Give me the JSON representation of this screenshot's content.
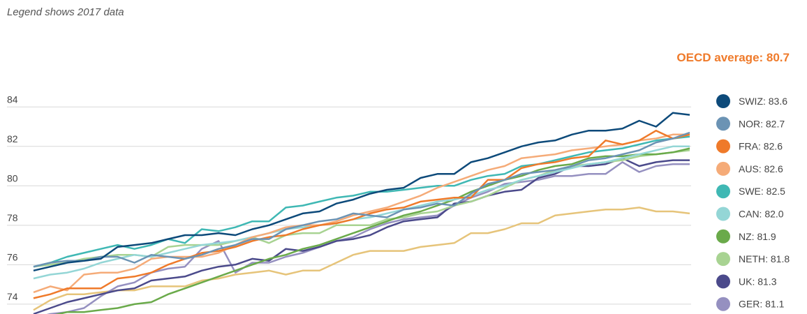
{
  "chart_data": {
    "type": "line",
    "subtitle": "Legend shows 2017 data",
    "annotation": "OECD average: 80.7",
    "categories": [
      null,
      null,
      null,
      null,
      null,
      null,
      null,
      null,
      null,
      null,
      null,
      null,
      null,
      null,
      null,
      null,
      null,
      null,
      null,
      null,
      null,
      null,
      null,
      null,
      null,
      null,
      null,
      null,
      null,
      null,
      null,
      null,
      null,
      null,
      null,
      null,
      null,
      null,
      null,
      null
    ],
    "ylim": [
      73.5,
      85
    ],
    "yticks": [
      74,
      76,
      78,
      80,
      82,
      84
    ],
    "grid": true,
    "legend": "right",
    "series": [
      {
        "name": "SWIZ: 83.6",
        "color": "#0d4a7a",
        "values": [
          75.7,
          75.9,
          76.1,
          76.2,
          76.3,
          76.9,
          77.0,
          77.1,
          77.3,
          77.5,
          77.5,
          77.6,
          77.5,
          77.8,
          78.0,
          78.3,
          78.6,
          78.7,
          79.1,
          79.3,
          79.6,
          79.8,
          79.9,
          80.4,
          80.6,
          80.6,
          81.2,
          81.4,
          81.7,
          82.0,
          82.2,
          82.3,
          82.6,
          82.8,
          82.8,
          82.9,
          83.3,
          83.0,
          83.7,
          83.6
        ]
      },
      {
        "name": "NOR: 82.7",
        "color": "#6b93b4",
        "values": [
          75.9,
          76.1,
          76.2,
          76.2,
          76.4,
          76.4,
          76.1,
          76.5,
          76.4,
          76.3,
          76.5,
          76.8,
          77.0,
          77.3,
          77.3,
          77.8,
          78.0,
          78.2,
          78.3,
          78.6,
          78.5,
          78.4,
          78.8,
          78.9,
          79.1,
          79.0,
          79.6,
          80.1,
          80.3,
          80.6,
          80.7,
          80.8,
          81.0,
          81.3,
          81.4,
          81.6,
          81.8,
          82.2,
          82.4,
          82.7
        ]
      },
      {
        "name": "FRA: 82.6",
        "color": "#ef7a2a",
        "values": [
          74.3,
          74.5,
          74.8,
          74.8,
          74.8,
          75.3,
          75.4,
          75.6,
          76.0,
          76.3,
          76.6,
          76.7,
          76.9,
          77.2,
          77.4,
          77.5,
          77.8,
          78.0,
          78.1,
          78.3,
          78.6,
          78.8,
          78.9,
          79.2,
          79.3,
          79.4,
          79.4,
          80.3,
          80.3,
          80.9,
          81.1,
          81.2,
          81.4,
          81.5,
          82.3,
          82.1,
          82.3,
          82.8,
          82.4,
          82.6
        ]
      },
      {
        "name": "AUS: 82.6",
        "color": "#f5ab78",
        "values": [
          74.6,
          74.9,
          74.7,
          75.5,
          75.6,
          75.6,
          75.8,
          76.3,
          76.4,
          76.4,
          76.4,
          76.6,
          77.0,
          77.4,
          77.6,
          77.9,
          78.0,
          78.0,
          78.2,
          78.5,
          78.7,
          78.9,
          79.2,
          79.5,
          79.9,
          80.2,
          80.5,
          80.8,
          81.0,
          81.4,
          81.5,
          81.6,
          81.8,
          81.9,
          82.0,
          82.1,
          82.3,
          82.4,
          82.6,
          82.6
        ]
      },
      {
        "name": "SWE: 82.5",
        "color": "#3fb8b4",
        "values": [
          75.9,
          76.1,
          76.4,
          76.6,
          76.8,
          77.0,
          76.8,
          77.0,
          77.3,
          77.1,
          77.8,
          77.7,
          77.9,
          78.2,
          78.2,
          78.9,
          79.0,
          79.2,
          79.4,
          79.5,
          79.7,
          79.7,
          79.8,
          79.9,
          80.0,
          80.0,
          80.3,
          80.5,
          80.6,
          81.0,
          81.1,
          81.3,
          81.5,
          81.7,
          81.8,
          81.9,
          82.1,
          82.3,
          82.4,
          82.5
        ]
      },
      {
        "name": "CAN: 82.0",
        "color": "#94d6d6",
        "values": [
          75.3,
          75.5,
          75.6,
          75.8,
          76.1,
          76.3,
          76.5,
          76.4,
          76.6,
          76.8,
          77.0,
          77.1,
          77.2,
          77.4,
          77.6,
          77.8,
          77.9,
          78.0,
          78.1,
          78.3,
          78.4,
          78.6,
          78.8,
          79.0,
          79.2,
          79.3,
          79.5,
          79.8,
          80.0,
          80.3,
          80.5,
          80.7,
          80.9,
          81.1,
          81.2,
          81.4,
          81.6,
          81.8,
          82.0,
          82.0
        ]
      },
      {
        "name": "NZ: 81.9",
        "color": "#6aaa4a",
        "values": [
          73.2,
          73.4,
          73.6,
          73.6,
          73.7,
          73.8,
          74.0,
          74.1,
          74.5,
          74.8,
          75.1,
          75.4,
          75.7,
          76.0,
          76.3,
          76.5,
          76.8,
          77.0,
          77.3,
          77.6,
          77.9,
          78.2,
          78.5,
          78.7,
          79.0,
          79.3,
          79.7,
          80.0,
          80.3,
          80.5,
          80.8,
          81.0,
          81.1,
          81.4,
          81.5,
          81.5,
          81.6,
          81.6,
          81.7,
          81.9
        ]
      },
      {
        "name": "NETH: 81.8",
        "color": "#a8d392",
        "values": [
          75.9,
          76.0,
          76.1,
          76.3,
          76.4,
          76.5,
          76.5,
          76.4,
          76.9,
          77.0,
          77.0,
          77.0,
          77.2,
          77.4,
          77.1,
          77.5,
          77.6,
          77.6,
          78.0,
          78.0,
          78.0,
          78.3,
          78.4,
          78.6,
          78.7,
          79.0,
          79.2,
          79.5,
          79.9,
          80.3,
          80.5,
          80.8,
          81.0,
          81.1,
          81.2,
          81.3,
          81.5,
          81.6,
          81.7,
          81.8
        ]
      },
      {
        "name": "UK: 81.3",
        "color": "#4b4a8b",
        "values": [
          73.5,
          73.8,
          74.1,
          74.3,
          74.5,
          74.7,
          74.8,
          75.2,
          75.3,
          75.4,
          75.7,
          75.9,
          76.0,
          76.3,
          76.2,
          76.8,
          76.7,
          76.9,
          77.2,
          77.3,
          77.5,
          77.9,
          78.2,
          78.3,
          78.4,
          79.1,
          79.2,
          79.5,
          79.7,
          79.8,
          80.4,
          80.6,
          81.0,
          81.0,
          81.1,
          81.4,
          81.0,
          81.2,
          81.3,
          81.3
        ]
      },
      {
        "name": "GER: 81.1",
        "color": "#9590c0",
        "values": [
          73.3,
          73.5,
          73.6,
          73.8,
          74.4,
          74.9,
          75.1,
          75.6,
          75.8,
          75.9,
          76.8,
          77.2,
          75.6,
          76.1,
          76.1,
          76.4,
          76.6,
          76.9,
          77.2,
          77.4,
          77.8,
          78.1,
          78.3,
          78.4,
          78.5,
          79.0,
          79.4,
          79.7,
          80.1,
          80.2,
          80.3,
          80.5,
          80.5,
          80.6,
          80.6,
          81.2,
          80.7,
          81.0,
          81.1,
          81.1
        ]
      },
      {
        "color": "#e6c47a",
        "values": [
          73.7,
          74.2,
          74.5,
          74.5,
          74.6,
          74.7,
          74.7,
          74.9,
          74.9,
          74.9,
          75.2,
          75.3,
          75.5,
          75.6,
          75.7,
          75.5,
          75.7,
          75.7,
          76.1,
          76.5,
          76.7,
          76.7,
          76.7,
          76.9,
          77.0,
          77.1,
          77.6,
          77.6,
          77.8,
          78.1,
          78.1,
          78.5,
          78.6,
          78.7,
          78.8,
          78.8,
          78.9,
          78.7,
          78.7,
          78.6
        ]
      }
    ]
  }
}
